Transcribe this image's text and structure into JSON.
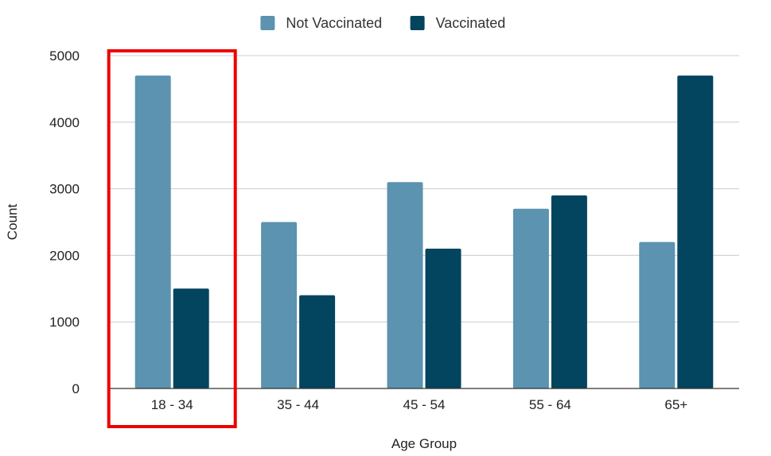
{
  "chart_data": {
    "type": "bar",
    "categories": [
      "18 - 34",
      "35 - 44",
      "45 - 54",
      "55 - 64",
      "65+"
    ],
    "series": [
      {
        "name": "Not Vaccinated",
        "color": "#5b93b0",
        "values": [
          4700,
          2500,
          3100,
          2700,
          2200
        ]
      },
      {
        "name": "Vaccinated",
        "color": "#03445f",
        "values": [
          1500,
          1400,
          2100,
          2900,
          4700
        ]
      }
    ],
    "xlabel": "Age Group",
    "ylabel": "Count",
    "ylim": [
      0,
      5000
    ],
    "yticks": [
      0,
      1000,
      2000,
      3000,
      4000,
      5000
    ],
    "grid": true,
    "legend_position": "top",
    "highlight": {
      "category": "18 - 34",
      "color": "#ee0000"
    }
  }
}
